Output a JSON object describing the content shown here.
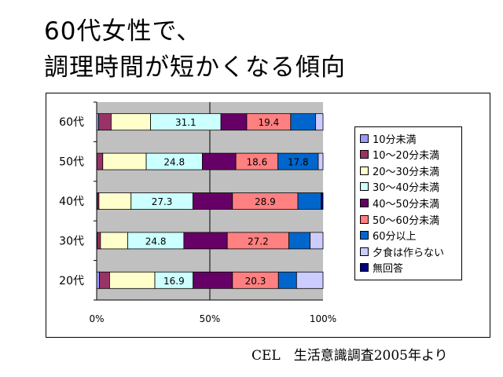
{
  "title": {
    "line1": "60代女性で、",
    "line2": "調理時間が短かくなる傾向"
  },
  "source": "CEL　生活意識調査2005年より",
  "chart_data": {
    "type": "bar",
    "orientation": "horizontal",
    "stacked": "percent",
    "categories": [
      "60代",
      "50代",
      "40代",
      "30代",
      "20代"
    ],
    "x_ticks": [
      "0%",
      "50%",
      "100%"
    ],
    "xlim": [
      0,
      100
    ],
    "grid": "vertical at 50%",
    "legend_position": "right",
    "series": [
      {
        "name": "10分未満",
        "color": "#9999FF",
        "values": [
          0.9,
          0.1,
          0.3,
          0.3,
          1.2
        ]
      },
      {
        "name": "10～20分未満",
        "color": "#993366",
        "values": [
          5.5,
          2.6,
          0.7,
          1.4,
          4.5
        ]
      },
      {
        "name": "20～30分未満",
        "color": "#FFFFCC",
        "values": [
          17.4,
          19.2,
          14.2,
          12.0,
          20.0
        ]
      },
      {
        "name": "30～40分未満",
        "color": "#CCFFFF",
        "values": [
          31.1,
          24.8,
          27.3,
          24.8,
          16.9
        ]
      },
      {
        "name": "40～50分未満",
        "color": "#660066",
        "values": [
          11.4,
          14.8,
          17.5,
          19.2,
          17.4
        ]
      },
      {
        "name": "50～60分未満",
        "color": "#FF8080",
        "values": [
          19.4,
          18.6,
          28.9,
          27.2,
          20.3
        ]
      },
      {
        "name": "60分以上",
        "color": "#0066CC",
        "values": [
          11.0,
          17.8,
          10.3,
          9.4,
          8.0
        ]
      },
      {
        "name": "夕食は作らない",
        "color": "#CCCCFF",
        "values": [
          3.3,
          2.1,
          0.0,
          5.7,
          11.7
        ]
      },
      {
        "name": "無回答",
        "color": "#000080",
        "values": [
          0.0,
          0.0,
          0.8,
          0.0,
          0.0
        ]
      }
    ],
    "data_labels": [
      {
        "category": "60代",
        "series": "30～40分未満",
        "text": "31.1"
      },
      {
        "category": "60代",
        "series": "50～60分未満",
        "text": "19.4"
      },
      {
        "category": "50代",
        "series": "30～40分未満",
        "text": "24.8"
      },
      {
        "category": "50代",
        "series": "50～60分未満",
        "text": "18.6"
      },
      {
        "category": "50代",
        "series": "60分以上",
        "text": "17.8"
      },
      {
        "category": "40代",
        "series": "30～40分未満",
        "text": "27.3"
      },
      {
        "category": "40代",
        "series": "50～60分未満",
        "text": "28.9"
      },
      {
        "category": "30代",
        "series": "30～40分未満",
        "text": "24.8"
      },
      {
        "category": "30代",
        "series": "50～60分未満",
        "text": "27.2"
      },
      {
        "category": "20代",
        "series": "30～40分未満",
        "text": "16.9"
      },
      {
        "category": "20代",
        "series": "50～60分未満",
        "text": "20.3"
      }
    ]
  }
}
